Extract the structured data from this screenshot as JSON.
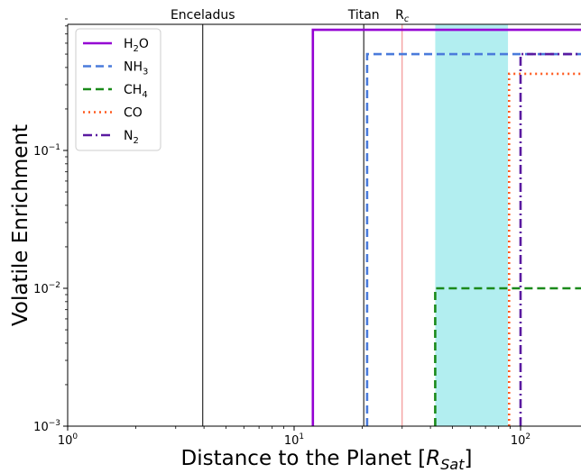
{
  "chart_data": {
    "type": "line",
    "title": "",
    "xlabel": "Distance to the Planet",
    "xlabel_unit_math": "R_Sat",
    "ylabel": "Volatile Enrichment",
    "xscale": "log",
    "yscale": "log",
    "xlim": [
      1,
      250
    ],
    "ylim": [
      0.001,
      0.9
    ],
    "x_ticks": [
      {
        "value": 1,
        "base": "10",
        "exp": "0"
      },
      {
        "value": 10,
        "base": "10",
        "exp": "1"
      },
      {
        "value": 100,
        "base": "10",
        "exp": "2"
      }
    ],
    "y_ticks": [
      {
        "value": 0.001,
        "base": "10",
        "exp": "−3"
      },
      {
        "value": 0.01,
        "base": "10",
        "exp": "−2"
      },
      {
        "value": 0.1,
        "base": "10",
        "exp": "−1"
      }
    ],
    "shaded_region": {
      "x_range": [
        42,
        88
      ],
      "color": "#b2eef0"
    },
    "vertical_lines": [
      {
        "label": "Enceladus",
        "x": 3.95,
        "color": "#000000"
      },
      {
        "label": "Titan",
        "x": 20.3,
        "color": "#000000"
      },
      {
        "label_main": "R",
        "label_sub": "c",
        "x": 30,
        "color": "#f08080"
      }
    ],
    "series": [
      {
        "name_main": "H",
        "name_sub": "2",
        "name_tail": "O",
        "color": "#9400d3",
        "dash": "",
        "x": [
          12.1,
          12.1,
          250
        ],
        "y": [
          0.001,
          0.75,
          0.75
        ]
      },
      {
        "name_main": "NH",
        "name_sub": "3",
        "name_tail": "",
        "color": "#4a7bdb",
        "dash": "9,5",
        "x": [
          21,
          21,
          250
        ],
        "y": [
          0.001,
          0.5,
          0.5
        ]
      },
      {
        "name_main": "CH",
        "name_sub": "4",
        "name_tail": "",
        "color": "#1a8a1a",
        "dash": "9,5",
        "x": [
          42,
          42,
          250
        ],
        "y": [
          0.001,
          0.01,
          0.01
        ]
      },
      {
        "name_main": "CO",
        "name_sub": "",
        "name_tail": "",
        "color": "#ff5a1f",
        "dash": "2,4",
        "x": [
          89,
          89,
          250
        ],
        "y": [
          0.001,
          0.36,
          0.36
        ]
      },
      {
        "name_main": "N",
        "name_sub": "2",
        "name_tail": "",
        "color": "#5a1aa0",
        "dash": "10,4,2,4",
        "x": [
          100,
          100,
          250
        ],
        "y": [
          0.001,
          0.5,
          0.5
        ]
      }
    ],
    "legend_position": "top-left"
  }
}
